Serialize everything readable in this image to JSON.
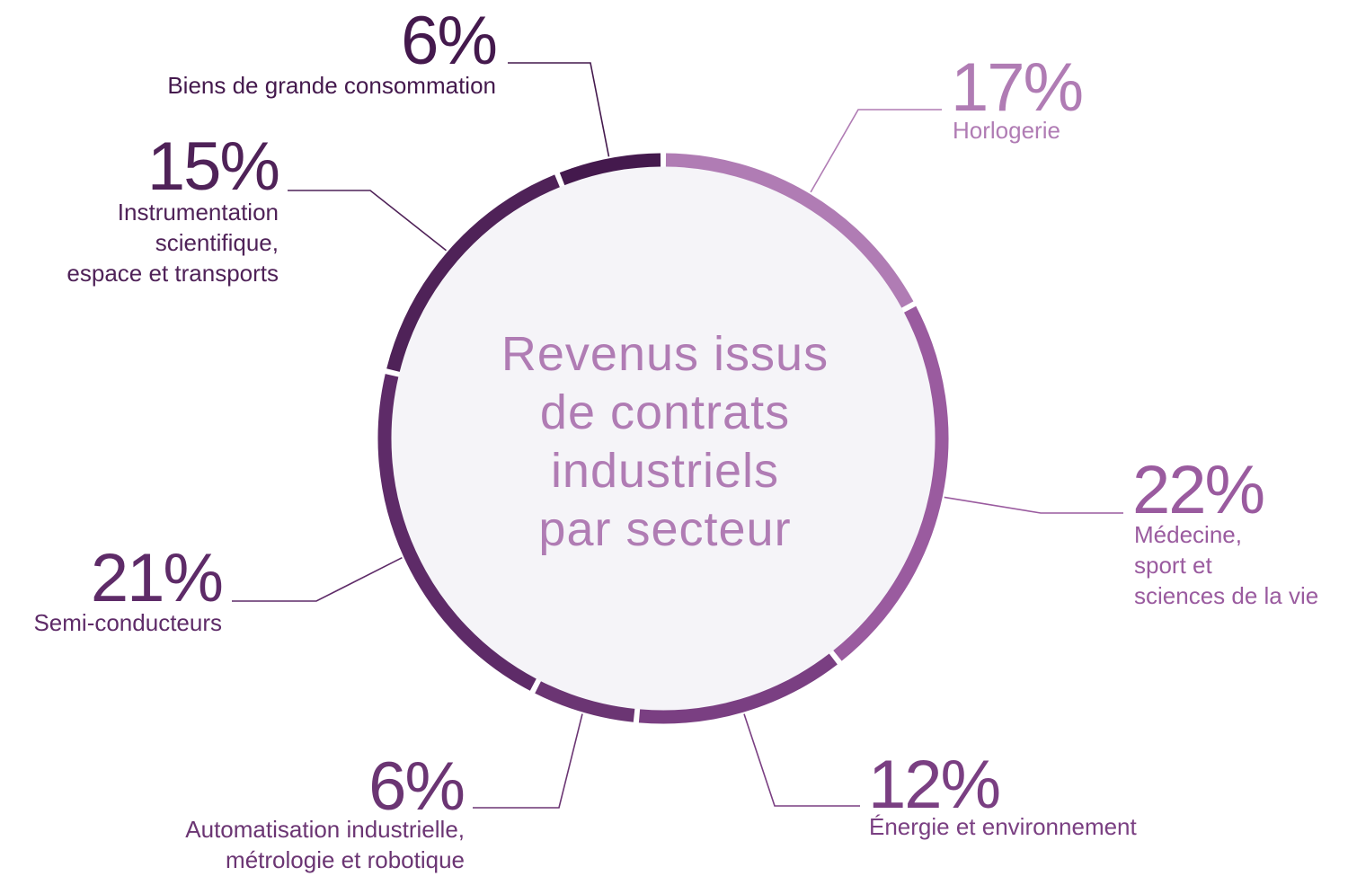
{
  "chart_data": {
    "type": "pie",
    "title": "Revenus issus\nde contrats\nindustriels\npar secteur",
    "unit": "%",
    "slices": [
      {
        "label": "Horlogerie",
        "value": 17,
        "display": "17%",
        "color": "#b07cb4"
      },
      {
        "label": "Médecine,\nsport et\nsciences de la vie",
        "value": 22,
        "display": "22%",
        "color": "#9a5b9f"
      },
      {
        "label": "Énergie et environnement",
        "value": 12,
        "display": "12%",
        "color": "#7a3f82"
      },
      {
        "label": "Automatisation industrielle,\nmétrologie et robotique",
        "value": 6,
        "display": "6%",
        "color": "#6b3573"
      },
      {
        "label": "Semi-conducteurs",
        "value": 21,
        "display": "21%",
        "color": "#5e2b68"
      },
      {
        "label": "Instrumentation\nscientifique,\nespace et transports",
        "value": 15,
        "display": "15%",
        "color": "#4f2258"
      },
      {
        "label": "Biens de grande consommation",
        "value": 6,
        "display": "6%",
        "color": "#44194d"
      }
    ]
  },
  "colors": {
    "center_fill": "#f5f4f8",
    "title": "#b07cb4"
  }
}
